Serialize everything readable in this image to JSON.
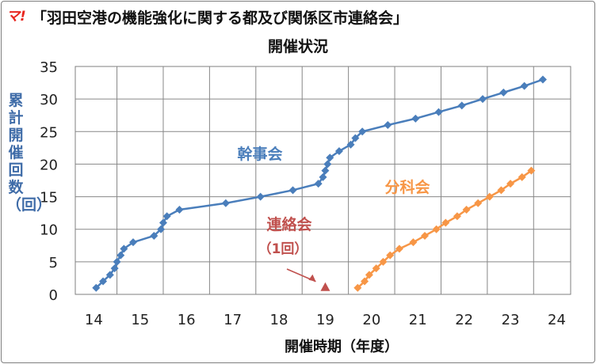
{
  "logo": "マ!",
  "title": "「羽田空港の機能強化に関する都及び関係区市連絡会」",
  "subtitle": "開催状況",
  "chart_data": {
    "type": "scatter",
    "title": "「羽田空港の機能強化に関する都及び関係区市連絡会」 開催状況",
    "xlabel": "開催時期（年度）",
    "ylabel": "累計開催回数（回）",
    "xlim": [
      13.6,
      24.3
    ],
    "ylim": [
      0,
      35
    ],
    "xticks": [
      14,
      15,
      16,
      17,
      18,
      19,
      20,
      21,
      22,
      23,
      24
    ],
    "yticks": [
      0,
      5,
      10,
      15,
      20,
      25,
      30,
      35
    ],
    "grid": true,
    "series": [
      {
        "name": "幹事会",
        "color": "#4a7ebb",
        "marker": "diamond",
        "line": true,
        "points": [
          [
            14.05,
            1
          ],
          [
            14.2,
            2
          ],
          [
            14.35,
            3
          ],
          [
            14.45,
            4
          ],
          [
            14.5,
            5
          ],
          [
            14.58,
            6
          ],
          [
            14.65,
            7
          ],
          [
            14.85,
            8
          ],
          [
            15.3,
            9
          ],
          [
            15.45,
            10
          ],
          [
            15.5,
            11
          ],
          [
            15.58,
            12
          ],
          [
            15.85,
            13
          ],
          [
            16.85,
            14
          ],
          [
            17.6,
            15
          ],
          [
            18.3,
            16
          ],
          [
            18.85,
            17
          ],
          [
            18.95,
            18
          ],
          [
            19.0,
            19
          ],
          [
            19.05,
            20
          ],
          [
            19.1,
            21
          ],
          [
            19.3,
            22
          ],
          [
            19.55,
            23
          ],
          [
            19.65,
            24
          ],
          [
            19.8,
            25
          ],
          [
            20.35,
            26
          ],
          [
            20.95,
            27
          ],
          [
            21.45,
            28
          ],
          [
            21.95,
            29
          ],
          [
            22.4,
            30
          ],
          [
            22.85,
            31
          ],
          [
            23.3,
            32
          ],
          [
            23.7,
            33
          ]
        ]
      },
      {
        "name": "分科会",
        "color": "#f79646",
        "marker": "diamond",
        "line": true,
        "points": [
          [
            19.7,
            1
          ],
          [
            19.85,
            2
          ],
          [
            19.95,
            3
          ],
          [
            20.1,
            4
          ],
          [
            20.25,
            5
          ],
          [
            20.4,
            6
          ],
          [
            20.6,
            7
          ],
          [
            20.9,
            8
          ],
          [
            21.15,
            9
          ],
          [
            21.4,
            10
          ],
          [
            21.6,
            11
          ],
          [
            21.85,
            12
          ],
          [
            22.05,
            13
          ],
          [
            22.3,
            14
          ],
          [
            22.55,
            15
          ],
          [
            22.8,
            16
          ],
          [
            23.0,
            17
          ],
          [
            23.25,
            18
          ],
          [
            23.45,
            19
          ]
        ]
      },
      {
        "name": "連絡会",
        "color": "#c0504d",
        "marker": "triangle",
        "line": false,
        "points": [
          [
            19.0,
            1
          ]
        ]
      }
    ],
    "annotations": [
      {
        "text": "幹事会",
        "color": "#4a7ebb"
      },
      {
        "text": "分科会",
        "color": "#f79646"
      },
      {
        "text": "連絡会",
        "color": "#c0504d"
      },
      {
        "text": "（1回）",
        "color": "#c0504d"
      }
    ]
  }
}
